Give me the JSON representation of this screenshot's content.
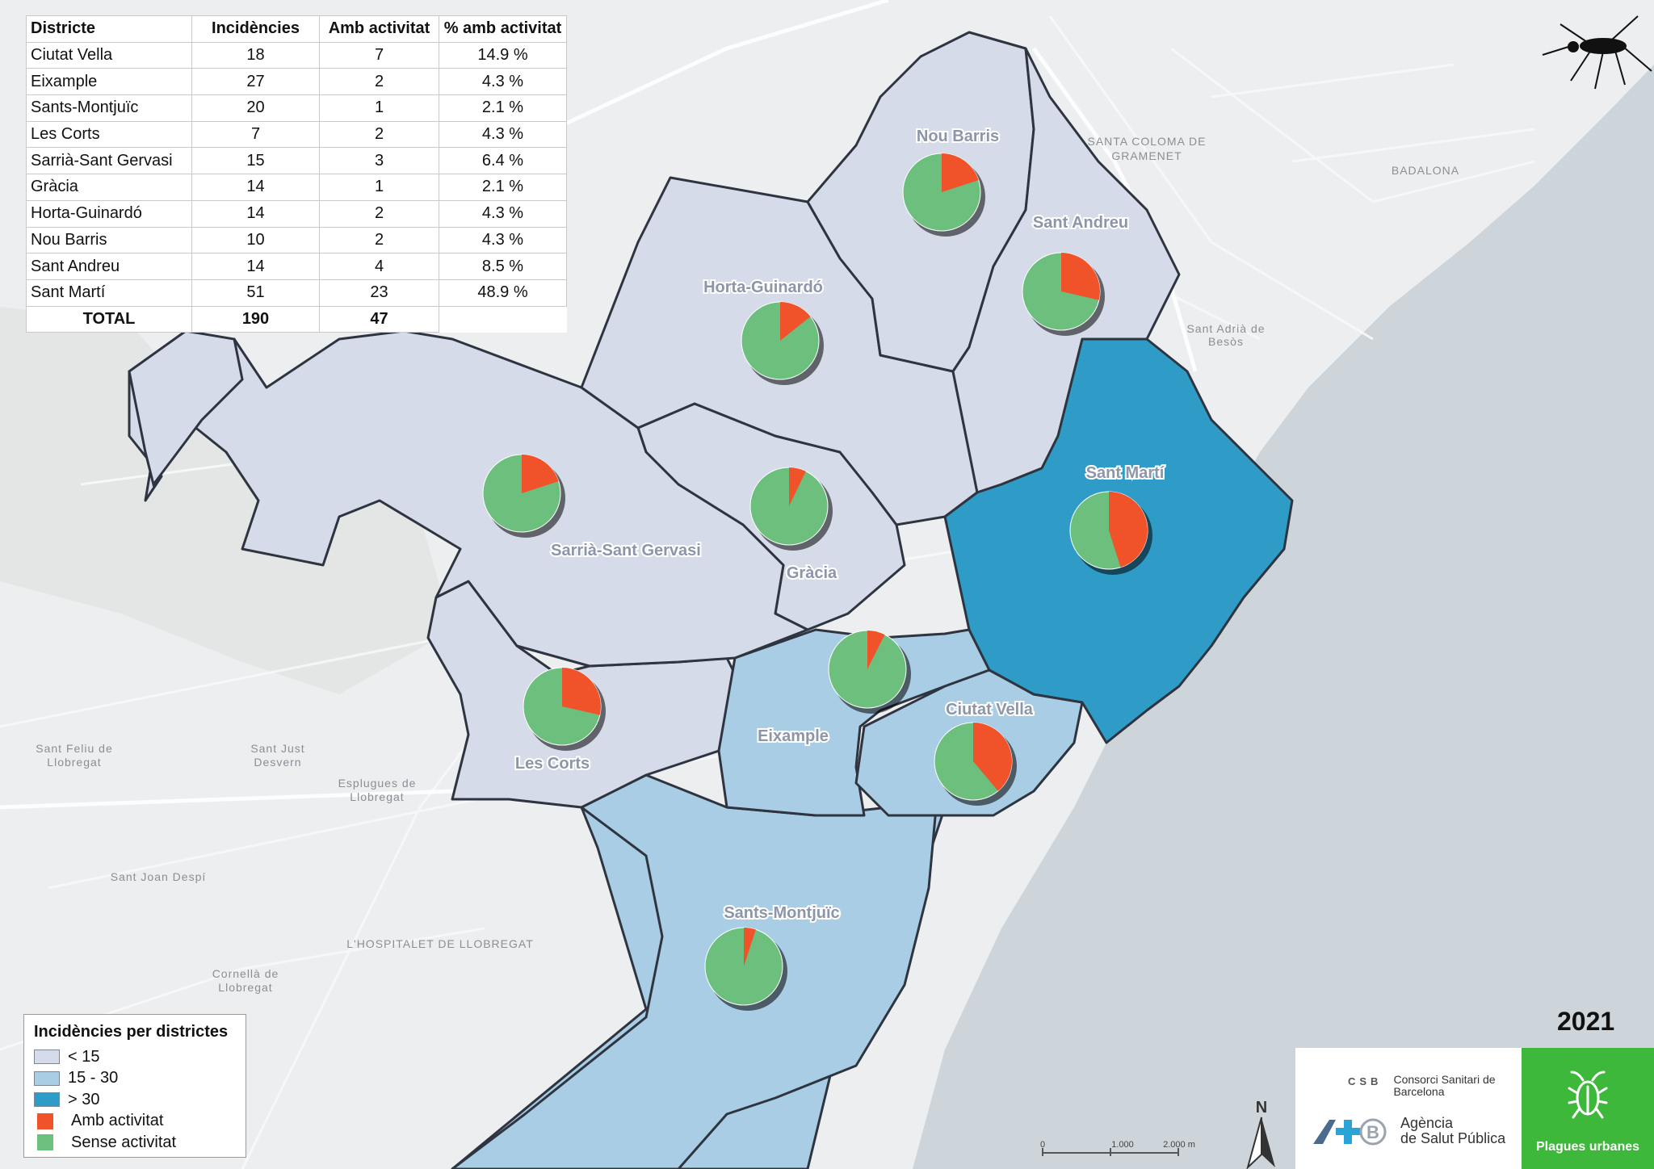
{
  "table": {
    "headers": [
      "Districte",
      "Incidències",
      "Amb activitat",
      "% amb activitat"
    ],
    "rows": [
      {
        "district": "Ciutat Vella",
        "incidencies": "18",
        "amb_activitat": "7",
        "pct": "14.9 %"
      },
      {
        "district": "Eixample",
        "incidencies": "27",
        "amb_activitat": "2",
        "pct": "4.3 %"
      },
      {
        "district": "Sants-Montjuïc",
        "incidencies": "20",
        "amb_activitat": "1",
        "pct": "2.1 %"
      },
      {
        "district": "Les Corts",
        "incidencies": "7",
        "amb_activitat": "2",
        "pct": "4.3 %"
      },
      {
        "district": "Sarrià-Sant Gervasi",
        "incidencies": "15",
        "amb_activitat": "3",
        "pct": "6.4 %"
      },
      {
        "district": "Gràcia",
        "incidencies": "14",
        "amb_activitat": "1",
        "pct": "2.1 %"
      },
      {
        "district": "Horta-Guinardó",
        "incidencies": "14",
        "amb_activitat": "2",
        "pct": "4.3 %"
      },
      {
        "district": "Nou Barris",
        "incidencies": "10",
        "amb_activitat": "2",
        "pct": "4.3 %"
      },
      {
        "district": "Sant Andreu",
        "incidencies": "14",
        "amb_activitat": "4",
        "pct": "8.5 %"
      },
      {
        "district": "Sant Martí",
        "incidencies": "51",
        "amb_activitat": "23",
        "pct": "48.9 %"
      }
    ],
    "total": {
      "label": "TOTAL",
      "incidencies": "190",
      "amb_activitat": "47"
    }
  },
  "map": {
    "districts": [
      {
        "name": "Nou Barris",
        "incidencies": 10,
        "amb_activitat": 2
      },
      {
        "name": "Sant Andreu",
        "incidencies": 14,
        "amb_activitat": 4
      },
      {
        "name": "Horta-Guinardó",
        "incidencies": 14,
        "amb_activitat": 2
      },
      {
        "name": "Sarrià-Sant Gervasi",
        "incidencies": 15,
        "amb_activitat": 3
      },
      {
        "name": "Gràcia",
        "incidencies": 14,
        "amb_activitat": 1
      },
      {
        "name": "Sant Martí",
        "incidencies": 51,
        "amb_activitat": 23
      },
      {
        "name": "Eixample",
        "incidencies": 27,
        "amb_activitat": 2
      },
      {
        "name": "Les Corts",
        "incidencies": 7,
        "amb_activitat": 2
      },
      {
        "name": "Ciutat Vella",
        "incidencies": 18,
        "amb_activitat": 7
      },
      {
        "name": "Sants-Montjuïc",
        "incidencies": 20,
        "amb_activitat": 1
      }
    ],
    "places": [
      "SANTA COLOMA DE",
      "GRAMENET",
      "BADALONA",
      "L'HOSPITALET DE LLOBREGAT",
      "Sant Feliu de",
      "Llobregat",
      "Sant Just",
      "Desvern",
      "Esplugues de",
      "Llobregat",
      "Cornellà de",
      "Llobregat",
      "Sant Joan Despí",
      "Sant Adrià de",
      "Besòs"
    ],
    "scalebar": {
      "ticks": [
        "0",
        "1.000",
        "2.000 m"
      ]
    },
    "north_label": "N"
  },
  "legend": {
    "title": "Incidències per districtes",
    "items": [
      "< 15",
      "15 - 30",
      "> 30",
      "Amb activitat",
      "Sense activitat"
    ]
  },
  "colors": {
    "low": "#d6dbe9",
    "mid": "#a9cde4",
    "high": "#2f9cc8",
    "amb": "#f0532a",
    "sense": "#6cbf7c",
    "plagues": "#3db83a"
  },
  "year": "2021",
  "logos": {
    "csb_mark": "CSB",
    "csb_name": "Consorci Sanitari de Barcelona",
    "aspb_name_1": "Agència",
    "aspb_name_2": "de Salut Pública",
    "plagues": "Plagues urbanes"
  }
}
